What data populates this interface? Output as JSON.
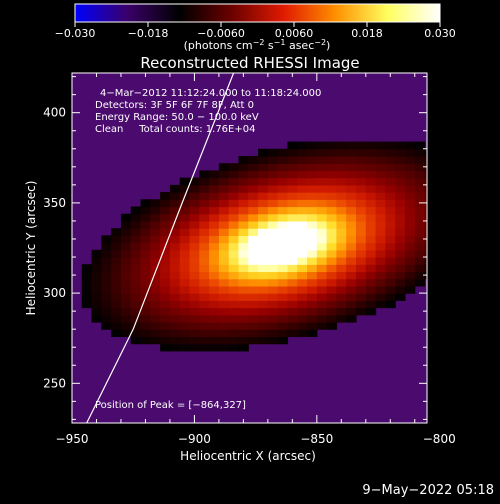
{
  "chart_data": {
    "type": "heatmap",
    "title": "Reconstructed RHESSI Image",
    "xlabel": "Heliocentric X (arcsec)",
    "ylabel": "Heliocentric Y (arcsec)",
    "xlim": [
      -950,
      -805
    ],
    "ylim": [
      228,
      422
    ],
    "x_ticks": [
      -950,
      -900,
      -850,
      -800
    ],
    "x_tick_labels": [
      "−950",
      "−900",
      "−850",
      "−800"
    ],
    "y_ticks": [
      250,
      300,
      350,
      400
    ],
    "y_tick_labels": [
      "250",
      "300",
      "350",
      "400"
    ],
    "colorbar": {
      "range": [
        -0.03,
        0.03
      ],
      "ticks": [
        -0.03,
        -0.018,
        -0.006,
        0.006,
        0.018,
        0.03
      ],
      "tick_labels": [
        "−0.030",
        "−0.018",
        "−0.0060",
        "0.0060",
        "0.018",
        "0.030"
      ],
      "unit_main": "(photons cm",
      "unit_sup1": "−2",
      "unit_mid": " s",
      "unit_sup2": "−1",
      "unit_mid2": " asec",
      "unit_sup3": "−2",
      "unit_end": ")",
      "colors": [
        "#0000ff",
        "#3a006a",
        "#000000",
        "#6a0000",
        "#e01a00",
        "#ff9000",
        "#ffff60",
        "#ffffff"
      ]
    },
    "annotations": [
      "4−Mar−2012 11:12:24.000 to 11:18:24.000",
      "Detectors: 3F 5F 6F 7F 8F, Att 0",
      "Energy Range: 50.0 − 100.0 keV",
      "Clean     Total counts: 1.76E+04"
    ],
    "peak_label": "Position of Peak = [−864,327]",
    "peak": {
      "x": -864,
      "y": 327
    },
    "source": {
      "peak_value": 0.03,
      "width_arcsec": 22,
      "height_arcsec": 14,
      "angle_deg": 25
    },
    "limb_curve": [
      {
        "x": -944,
        "y": 228
      },
      {
        "x": -925,
        "y": 280
      },
      {
        "x": -905,
        "y": 350
      },
      {
        "x": -884,
        "y": 422
      }
    ],
    "background_color": "#4a0a6e"
  },
  "footer": {
    "date_stamp": "9−May−2022 05:18"
  }
}
